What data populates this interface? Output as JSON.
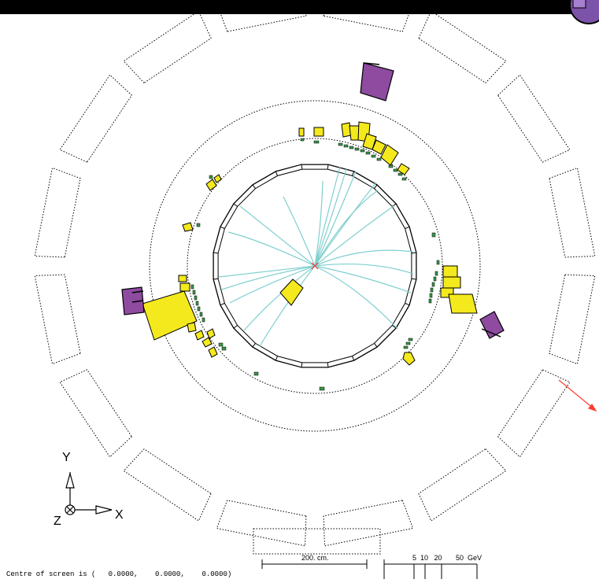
{
  "status": {
    "centre_text": "Centre of screen is (   0.0000,    0.0000,    0.0000)"
  },
  "axes": {
    "y_label": "Y",
    "x_label": "X",
    "z_label": "Z"
  },
  "scale": {
    "length_label": "200. cm.",
    "energy_label": "5  10   20       50  GeV"
  },
  "colors": {
    "tracks": "#7fcfcf",
    "ecal": "#f4e91c",
    "hcal": "#8e4ba0",
    "muon_hits": "#3a9a48",
    "vertex": "#ff3b2f",
    "outline": "#000000"
  },
  "icons": {
    "logo": "experiment-logo-icon",
    "axes": "axis-triad-icon"
  }
}
